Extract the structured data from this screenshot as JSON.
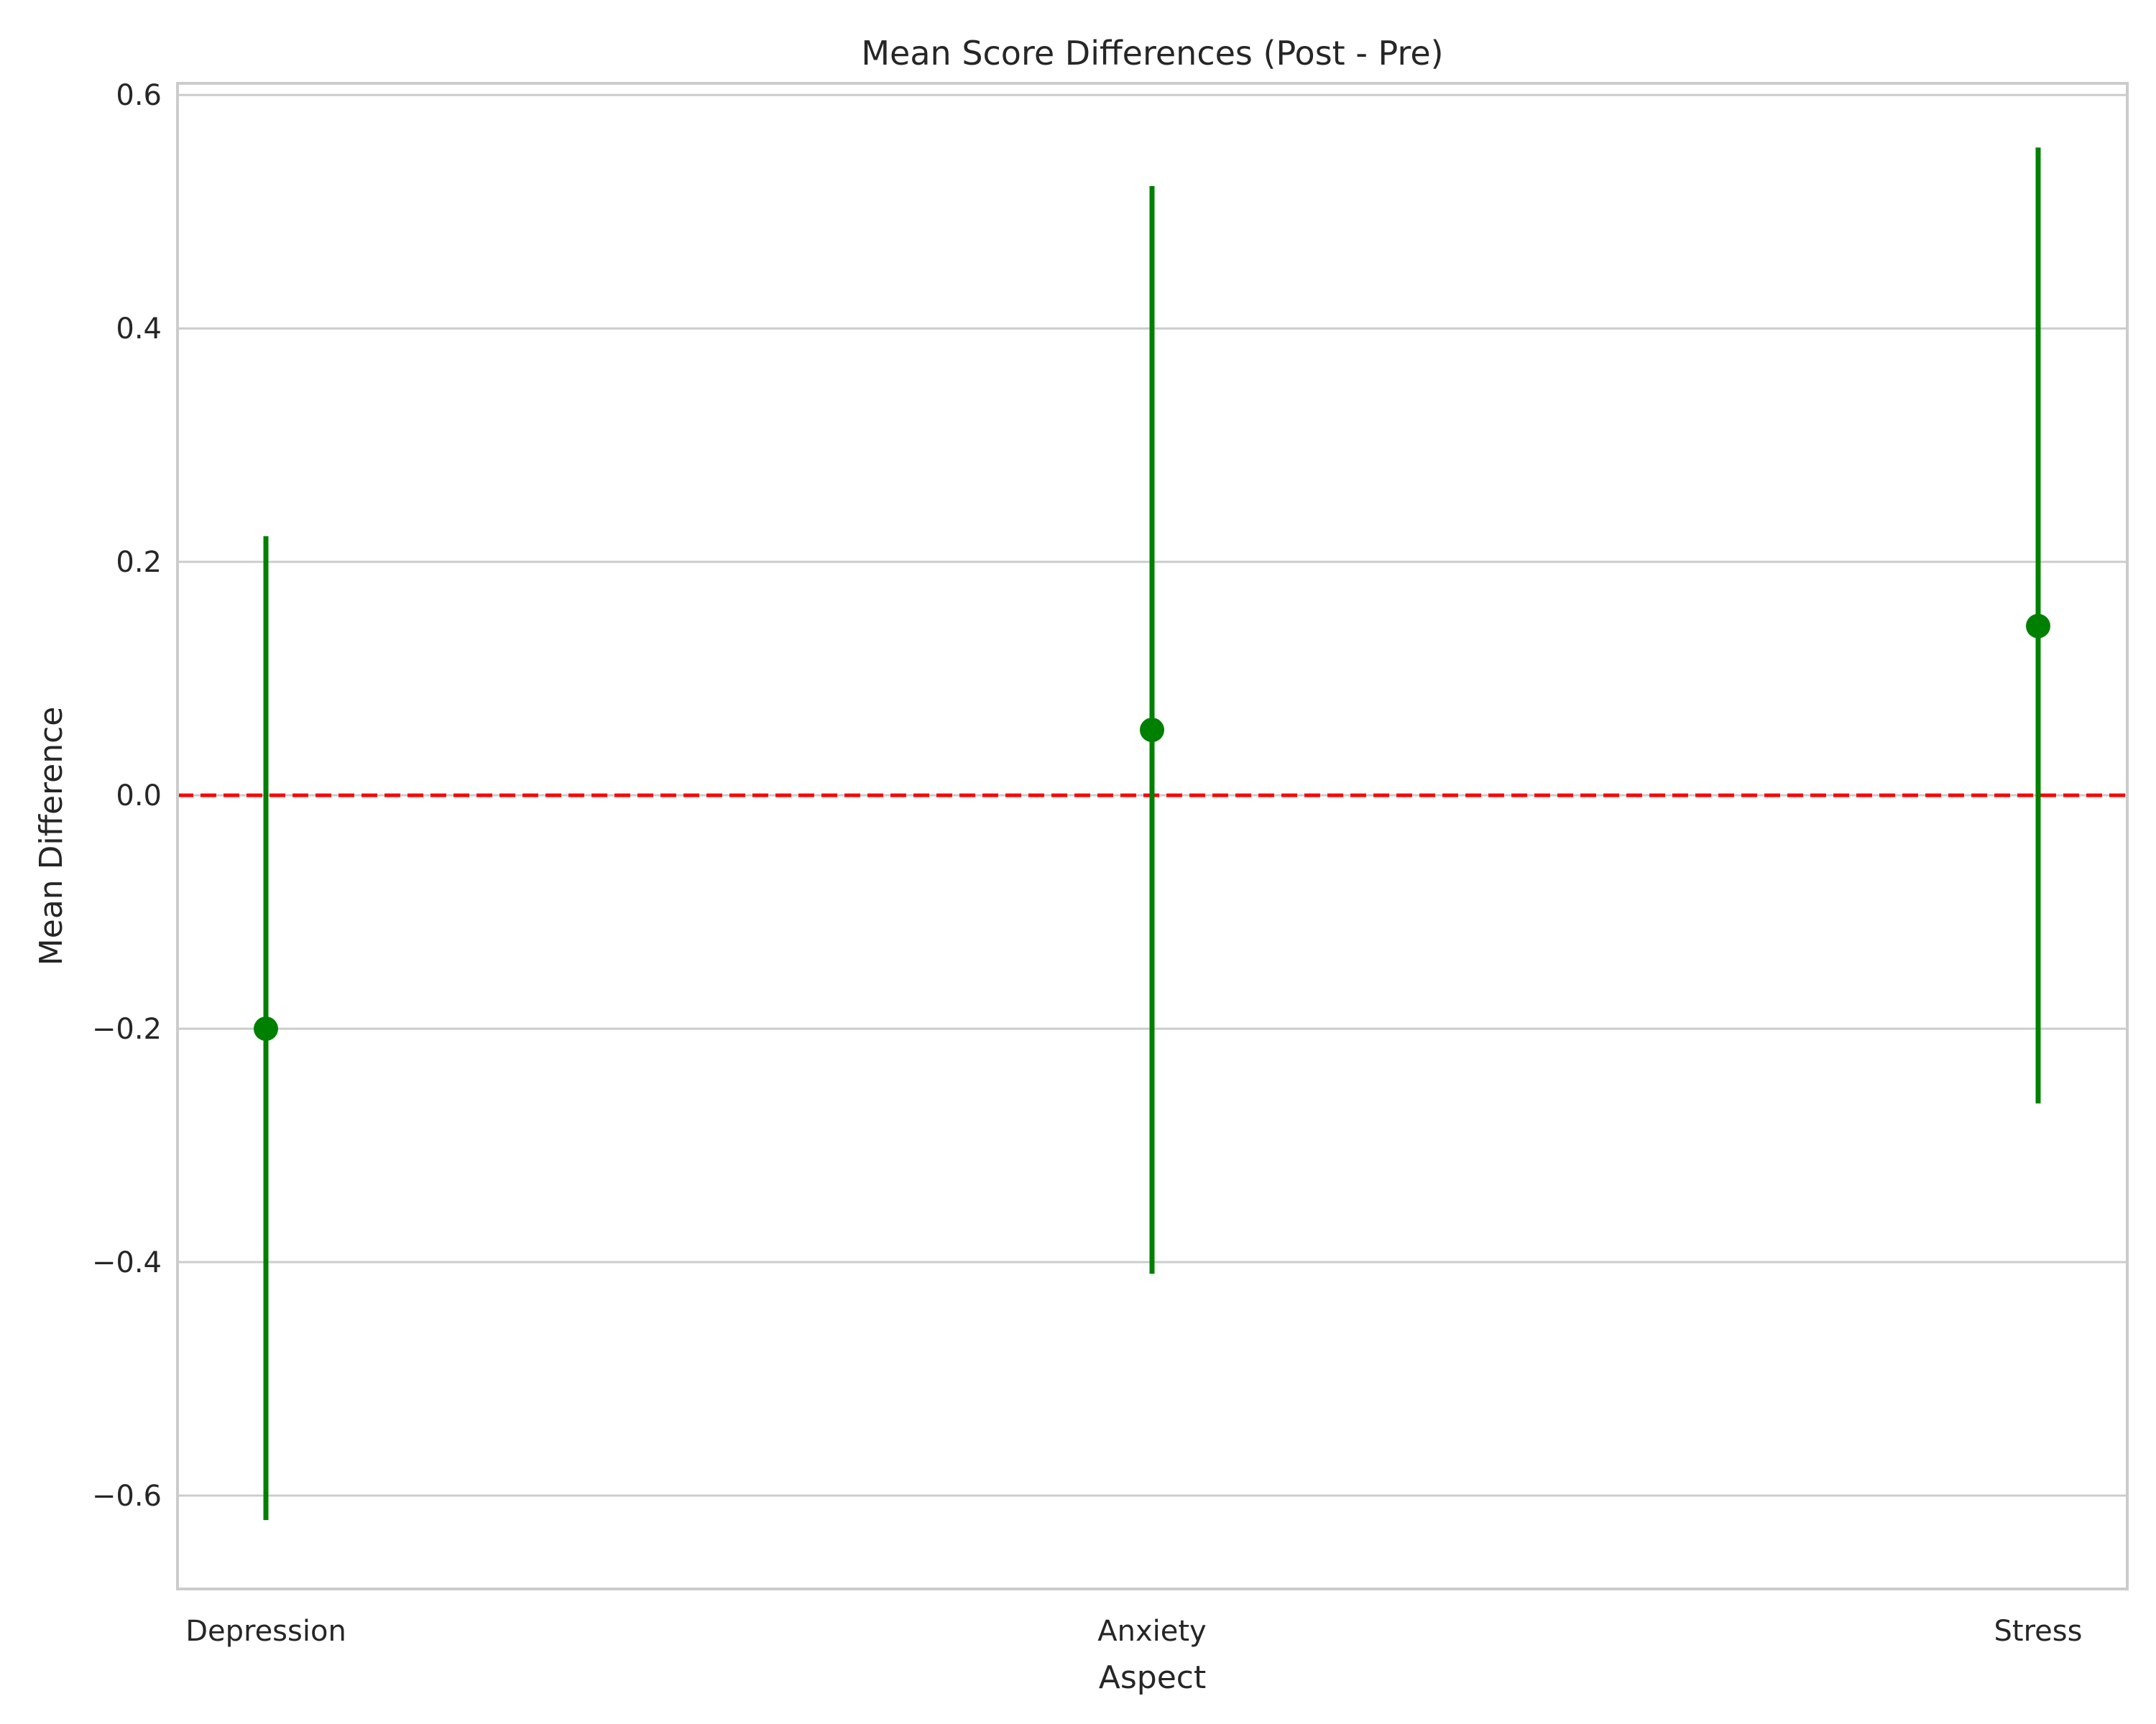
{
  "chart_data": {
    "type": "point",
    "title": "Mean Score Differences (Post - Pre)",
    "xlabel": "Aspect",
    "ylabel": "Mean Difference",
    "categories": [
      "Depression",
      "Anxiety",
      "Stress"
    ],
    "values": [
      -0.2,
      0.056,
      0.145
    ],
    "ci_lower": [
      -0.621,
      -0.41,
      -0.264
    ],
    "ci_upper": [
      0.222,
      0.522,
      0.555
    ],
    "ylim": [
      -0.68,
      0.61
    ],
    "yticks": [
      -0.6,
      -0.4,
      -0.2,
      0.0,
      0.2,
      0.4,
      0.6
    ],
    "ytick_labels": [
      "−0.6",
      "−0.4",
      "−0.2",
      "0.0",
      "0.2",
      "0.4",
      "0.6"
    ],
    "reference_line": {
      "y": 0.0,
      "style": "dashed",
      "color": "#ff0000"
    },
    "series_color": "#008000",
    "grid": "horizontal"
  }
}
